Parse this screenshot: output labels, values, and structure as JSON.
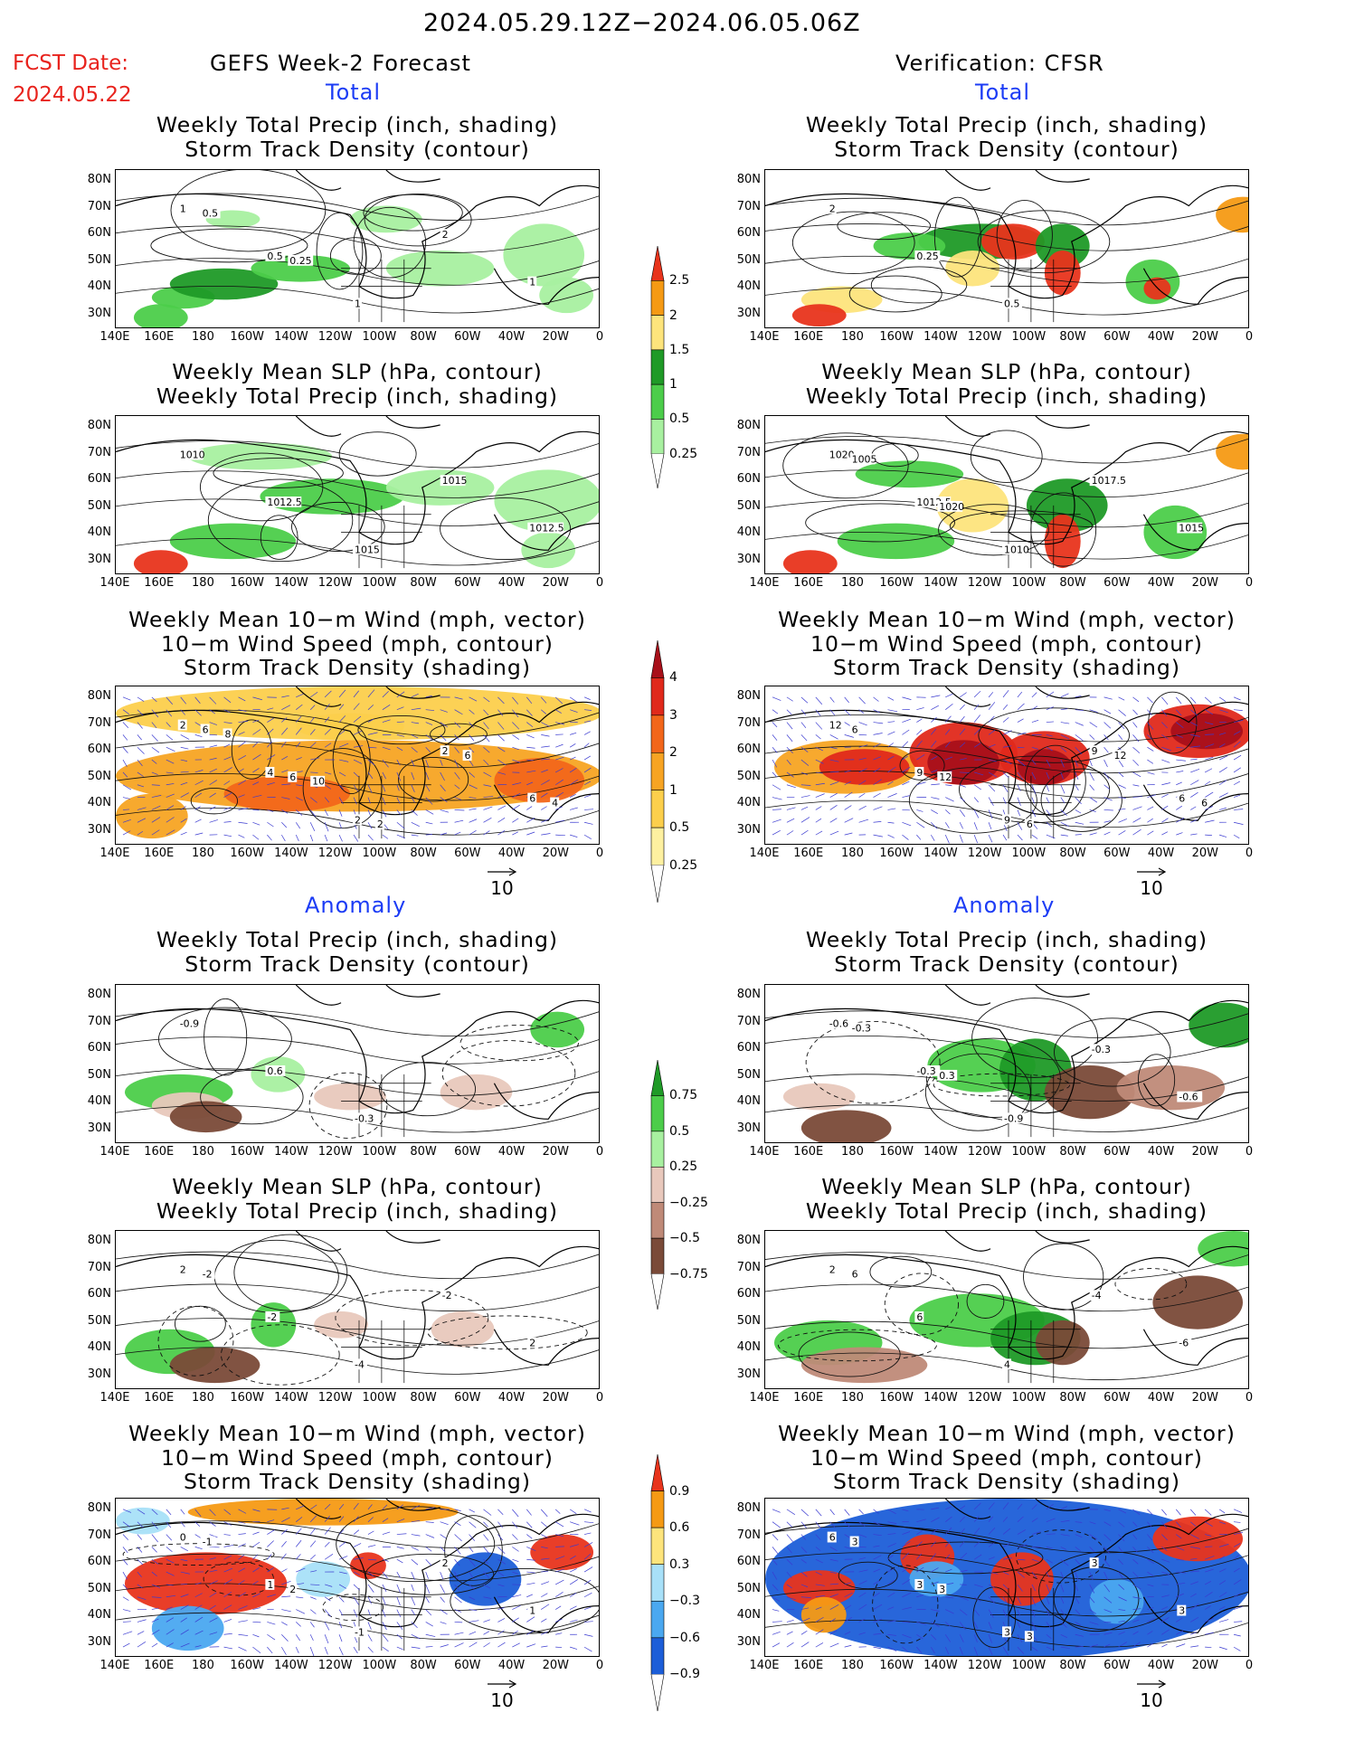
{
  "header": {
    "period": "2024.05.29.12Z−2024.06.05.06Z",
    "fcst_label": "FCST Date:",
    "fcst_date": "2024.05.22",
    "left_title": "GEFS Week-2 Forecast",
    "right_title": "Verification: CFSR"
  },
  "sections": {
    "total": "Total",
    "anomaly": "Anomaly"
  },
  "panel_titles": {
    "precip_track": [
      "Weekly Total Precip (inch, shading)",
      "Storm Track Density (contour)"
    ],
    "slp_precip": [
      "Weekly Mean SLP (hPa, contour)",
      "Weekly Total Precip (inch, shading)"
    ],
    "wind": [
      "Weekly Mean 10−m Wind (mph, vector)",
      "10−m Wind Speed (mph, contour)",
      "Storm Track Density (shading)"
    ]
  },
  "axes": {
    "lat": [
      "80N",
      "70N",
      "60N",
      "50N",
      "40N",
      "30N"
    ],
    "lon": [
      "140E",
      "160E",
      "180",
      "160W",
      "140W",
      "120W",
      "100W",
      "80W",
      "60W",
      "40W",
      "20W",
      "0"
    ]
  },
  "vector_ref": "10",
  "colorbars": {
    "precip_total": {
      "labels": [
        "2.5",
        "2",
        "1.5",
        "1",
        "0.5",
        "0.25"
      ],
      "colors": [
        "#e8341c",
        "#f59a14",
        "#fde47c",
        "#1f9a27",
        "#4ccd4a",
        "#a8f0a0"
      ]
    },
    "track_total": {
      "labels": [
        "4",
        "3",
        "2",
        "1",
        "0.5",
        "0.25"
      ],
      "colors": [
        "#a8101a",
        "#e0291b",
        "#f2661a",
        "#f7a423",
        "#fccf4c",
        "#fdf0a0"
      ]
    },
    "precip_anom": {
      "labels": [
        "0.75",
        "0.5",
        "0.25",
        "−0.25",
        "−0.5",
        "−0.75"
      ],
      "colors": [
        "#1f9a27",
        "#4ccd4a",
        "#a8f0a0",
        "#e8c8bc",
        "#bf8a78",
        "#7a4a38"
      ]
    },
    "track_anom": {
      "labels": [
        "0.9",
        "0.6",
        "0.3",
        "−0.3",
        "−0.6",
        "−0.9"
      ],
      "colors": [
        "#e8341c",
        "#f59a14",
        "#fde47c",
        "#a8e0f8",
        "#4aa8f0",
        "#1c5ed8"
      ]
    }
  },
  "panels": {
    "fc_total_precip": {
      "contour_labels": [
        "1",
        "0.5",
        "1",
        "2",
        "1",
        "0.5",
        "0.25"
      ]
    },
    "fc_total_slp": {
      "contour_labels": [
        "1010",
        "1012.5",
        "1015",
        "1015",
        "1012.5"
      ]
    },
    "fc_total_wind": {
      "contour_labels": [
        "2",
        "4",
        "2",
        "2",
        "6",
        "6",
        "6",
        "2",
        "6",
        "4",
        "8",
        "10"
      ]
    },
    "ver_total_precip": {
      "contour_labels": [
        "2",
        "0.25",
        "0.5"
      ]
    },
    "ver_total_slp": {
      "contour_labels": [
        "1020",
        "1012.5",
        "1010",
        "1017.5",
        "1015",
        "1005",
        "1020"
      ]
    },
    "ver_total_wind": {
      "contour_labels": [
        "12",
        "9",
        "9",
        "9",
        "6",
        "6",
        "12",
        "6",
        "12",
        "6"
      ]
    },
    "fc_anom_precip": {
      "contour_labels": [
        "-0.9",
        "0.6",
        "-0.3"
      ]
    },
    "fc_anom_slp": {
      "contour_labels": [
        "2",
        "-2",
        "-4",
        "-2",
        "2",
        "-2"
      ]
    },
    "fc_anom_wind": {
      "contour_labels": [
        "0",
        "1",
        "-1",
        "2",
        "1",
        "-1",
        "2"
      ]
    },
    "ver_anom_precip": {
      "contour_labels": [
        "-0.6",
        "-0.3",
        "-0.9",
        "-0.3",
        "-0.6",
        "-0.3",
        "0.3"
      ]
    },
    "ver_anom_slp": {
      "contour_labels": [
        "2",
        "6",
        "4",
        "-4",
        "-6",
        "6"
      ]
    },
    "ver_anom_wind": {
      "contour_labels": [
        "6",
        "3",
        "3",
        "3",
        "3",
        "3",
        "3",
        "3"
      ]
    }
  }
}
